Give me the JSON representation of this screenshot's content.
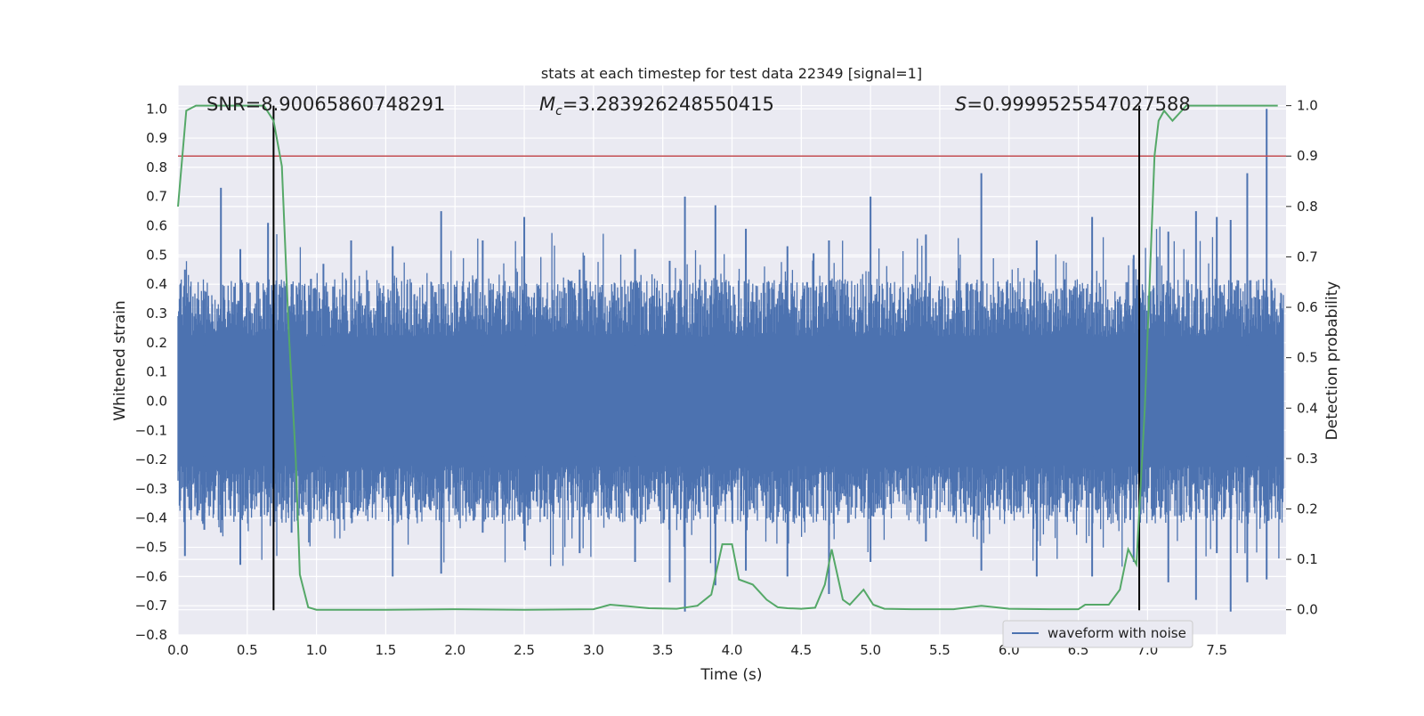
{
  "chart_data": {
    "type": "line",
    "title": "stats at each timestep for test data 22349 [signal=1]",
    "xlabel": "Time (s)",
    "ylabel": "Whitened strain",
    "ylabel_right": "Detection probability",
    "xlim": [
      0.0,
      8.0
    ],
    "ylim": [
      -0.8,
      1.08
    ],
    "ylim_right": [
      -0.05,
      1.04
    ],
    "x_ticks": [
      "0.0",
      "0.5",
      "1.0",
      "1.5",
      "2.0",
      "2.5",
      "3.0",
      "3.5",
      "4.0",
      "4.5",
      "5.0",
      "5.5",
      "6.0",
      "6.5",
      "7.0",
      "7.5"
    ],
    "y_ticks": [
      "1.0",
      "0.9",
      "0.8",
      "0.7",
      "0.6",
      "0.5",
      "0.4",
      "0.3",
      "0.2",
      "0.1",
      "0.0",
      "−0.1",
      "−0.2",
      "−0.3",
      "−0.4",
      "−0.5",
      "−0.6",
      "−0.7",
      "−0.8"
    ],
    "y_ticks_right": [
      "1.0",
      "0.9",
      "0.8",
      "0.7",
      "0.6",
      "0.5",
      "0.4",
      "0.3",
      "0.2",
      "0.1",
      "0.0"
    ],
    "grid": true,
    "annotations": {
      "snr": "SNR=8.90065860748291",
      "mc_symbol": "M",
      "mc_sub": "c",
      "mc_value": "=3.283926248550415",
      "s_symbol": "S",
      "s_value": "=0.9999525547027588"
    },
    "legend": {
      "label": "waveform with noise",
      "placement": "lower-right"
    },
    "threshold_right": 0.9,
    "vertical_markers_x": [
      0.69,
      6.94
    ],
    "series": [
      {
        "name": "waveform with noise",
        "color": "#4c72b0",
        "envelope_note": "dense noise; representative peaks",
        "peaks": [
          {
            "x": 0.05,
            "top": 0.45,
            "bottom": -0.53
          },
          {
            "x": 0.19,
            "top": 0.35,
            "bottom": -0.44
          },
          {
            "x": 0.31,
            "top": 0.73,
            "bottom": -0.45
          },
          {
            "x": 0.45,
            "top": 0.52,
            "bottom": -0.56
          },
          {
            "x": 0.65,
            "top": 0.61,
            "bottom": -0.38
          },
          {
            "x": 0.82,
            "top": 0.4,
            "bottom": -0.45
          },
          {
            "x": 1.05,
            "top": 0.47,
            "bottom": -0.36
          },
          {
            "x": 1.25,
            "top": 0.55,
            "bottom": -0.4
          },
          {
            "x": 1.55,
            "top": 0.53,
            "bottom": -0.6
          },
          {
            "x": 1.9,
            "top": 0.65,
            "bottom": -0.59
          },
          {
            "x": 2.2,
            "top": 0.55,
            "bottom": -0.45
          },
          {
            "x": 2.5,
            "top": 0.63,
            "bottom": -0.48
          },
          {
            "x": 2.9,
            "top": 0.45,
            "bottom": -0.52
          },
          {
            "x": 3.3,
            "top": 0.52,
            "bottom": -0.55
          },
          {
            "x": 3.55,
            "top": 0.48,
            "bottom": -0.62
          },
          {
            "x": 3.66,
            "top": 0.7,
            "bottom": -0.72
          },
          {
            "x": 3.88,
            "top": 0.67,
            "bottom": -0.63
          },
          {
            "x": 4.1,
            "top": 0.59,
            "bottom": -0.58
          },
          {
            "x": 4.4,
            "top": 0.53,
            "bottom": -0.6
          },
          {
            "x": 4.7,
            "top": 0.55,
            "bottom": -0.66
          },
          {
            "x": 5.0,
            "top": 0.7,
            "bottom": -0.55
          },
          {
            "x": 5.4,
            "top": 0.57,
            "bottom": -0.48
          },
          {
            "x": 5.8,
            "top": 0.78,
            "bottom": -0.58
          },
          {
            "x": 6.2,
            "top": 0.55,
            "bottom": -0.6
          },
          {
            "x": 6.6,
            "top": 0.63,
            "bottom": -0.6
          },
          {
            "x": 6.9,
            "top": 0.5,
            "bottom": -0.55
          },
          {
            "x": 7.15,
            "top": 0.58,
            "bottom": -0.62
          },
          {
            "x": 7.35,
            "top": 0.65,
            "bottom": -0.68
          },
          {
            "x": 7.5,
            "top": 0.63,
            "bottom": -0.52
          },
          {
            "x": 7.6,
            "top": 0.62,
            "bottom": -0.72
          },
          {
            "x": 7.72,
            "top": 0.78,
            "bottom": -0.62
          },
          {
            "x": 7.86,
            "top": 1.0,
            "bottom": -0.61
          }
        ]
      },
      {
        "name": "",
        "axis": "right",
        "color": "#55a868",
        "x": [
          0.0,
          0.06,
          0.13,
          0.2,
          0.3,
          0.4,
          0.5,
          0.56,
          0.62,
          0.69,
          0.75,
          0.8,
          0.85,
          0.88,
          0.94,
          1.0,
          1.5,
          2.0,
          2.5,
          3.0,
          3.12,
          3.25,
          3.4,
          3.6,
          3.75,
          3.85,
          3.93,
          4.0,
          4.05,
          4.15,
          4.25,
          4.33,
          4.4,
          4.5,
          4.6,
          4.67,
          4.72,
          4.8,
          4.85,
          4.95,
          5.02,
          5.1,
          5.3,
          5.6,
          5.8,
          5.9,
          6.0,
          6.3,
          6.5,
          6.55,
          6.72,
          6.8,
          6.86,
          6.92,
          6.98,
          7.05,
          7.08,
          7.12,
          7.18,
          7.28,
          7.5,
          7.94
        ],
        "values": [
          0.8,
          0.99,
          1.0,
          1.0,
          1.0,
          1.0,
          1.0,
          1.0,
          1.0,
          0.97,
          0.88,
          0.55,
          0.3,
          0.07,
          0.005,
          0.0,
          0.0,
          0.001,
          0.0,
          0.001,
          0.01,
          0.007,
          0.003,
          0.002,
          0.008,
          0.03,
          0.13,
          0.13,
          0.06,
          0.05,
          0.02,
          0.005,
          0.003,
          0.002,
          0.004,
          0.05,
          0.12,
          0.02,
          0.01,
          0.04,
          0.01,
          0.002,
          0.001,
          0.001,
          0.008,
          0.005,
          0.002,
          0.001,
          0.001,
          0.01,
          0.01,
          0.04,
          0.12,
          0.09,
          0.4,
          0.9,
          0.97,
          0.99,
          0.97,
          1.0,
          1.0,
          1.0
        ]
      }
    ]
  }
}
